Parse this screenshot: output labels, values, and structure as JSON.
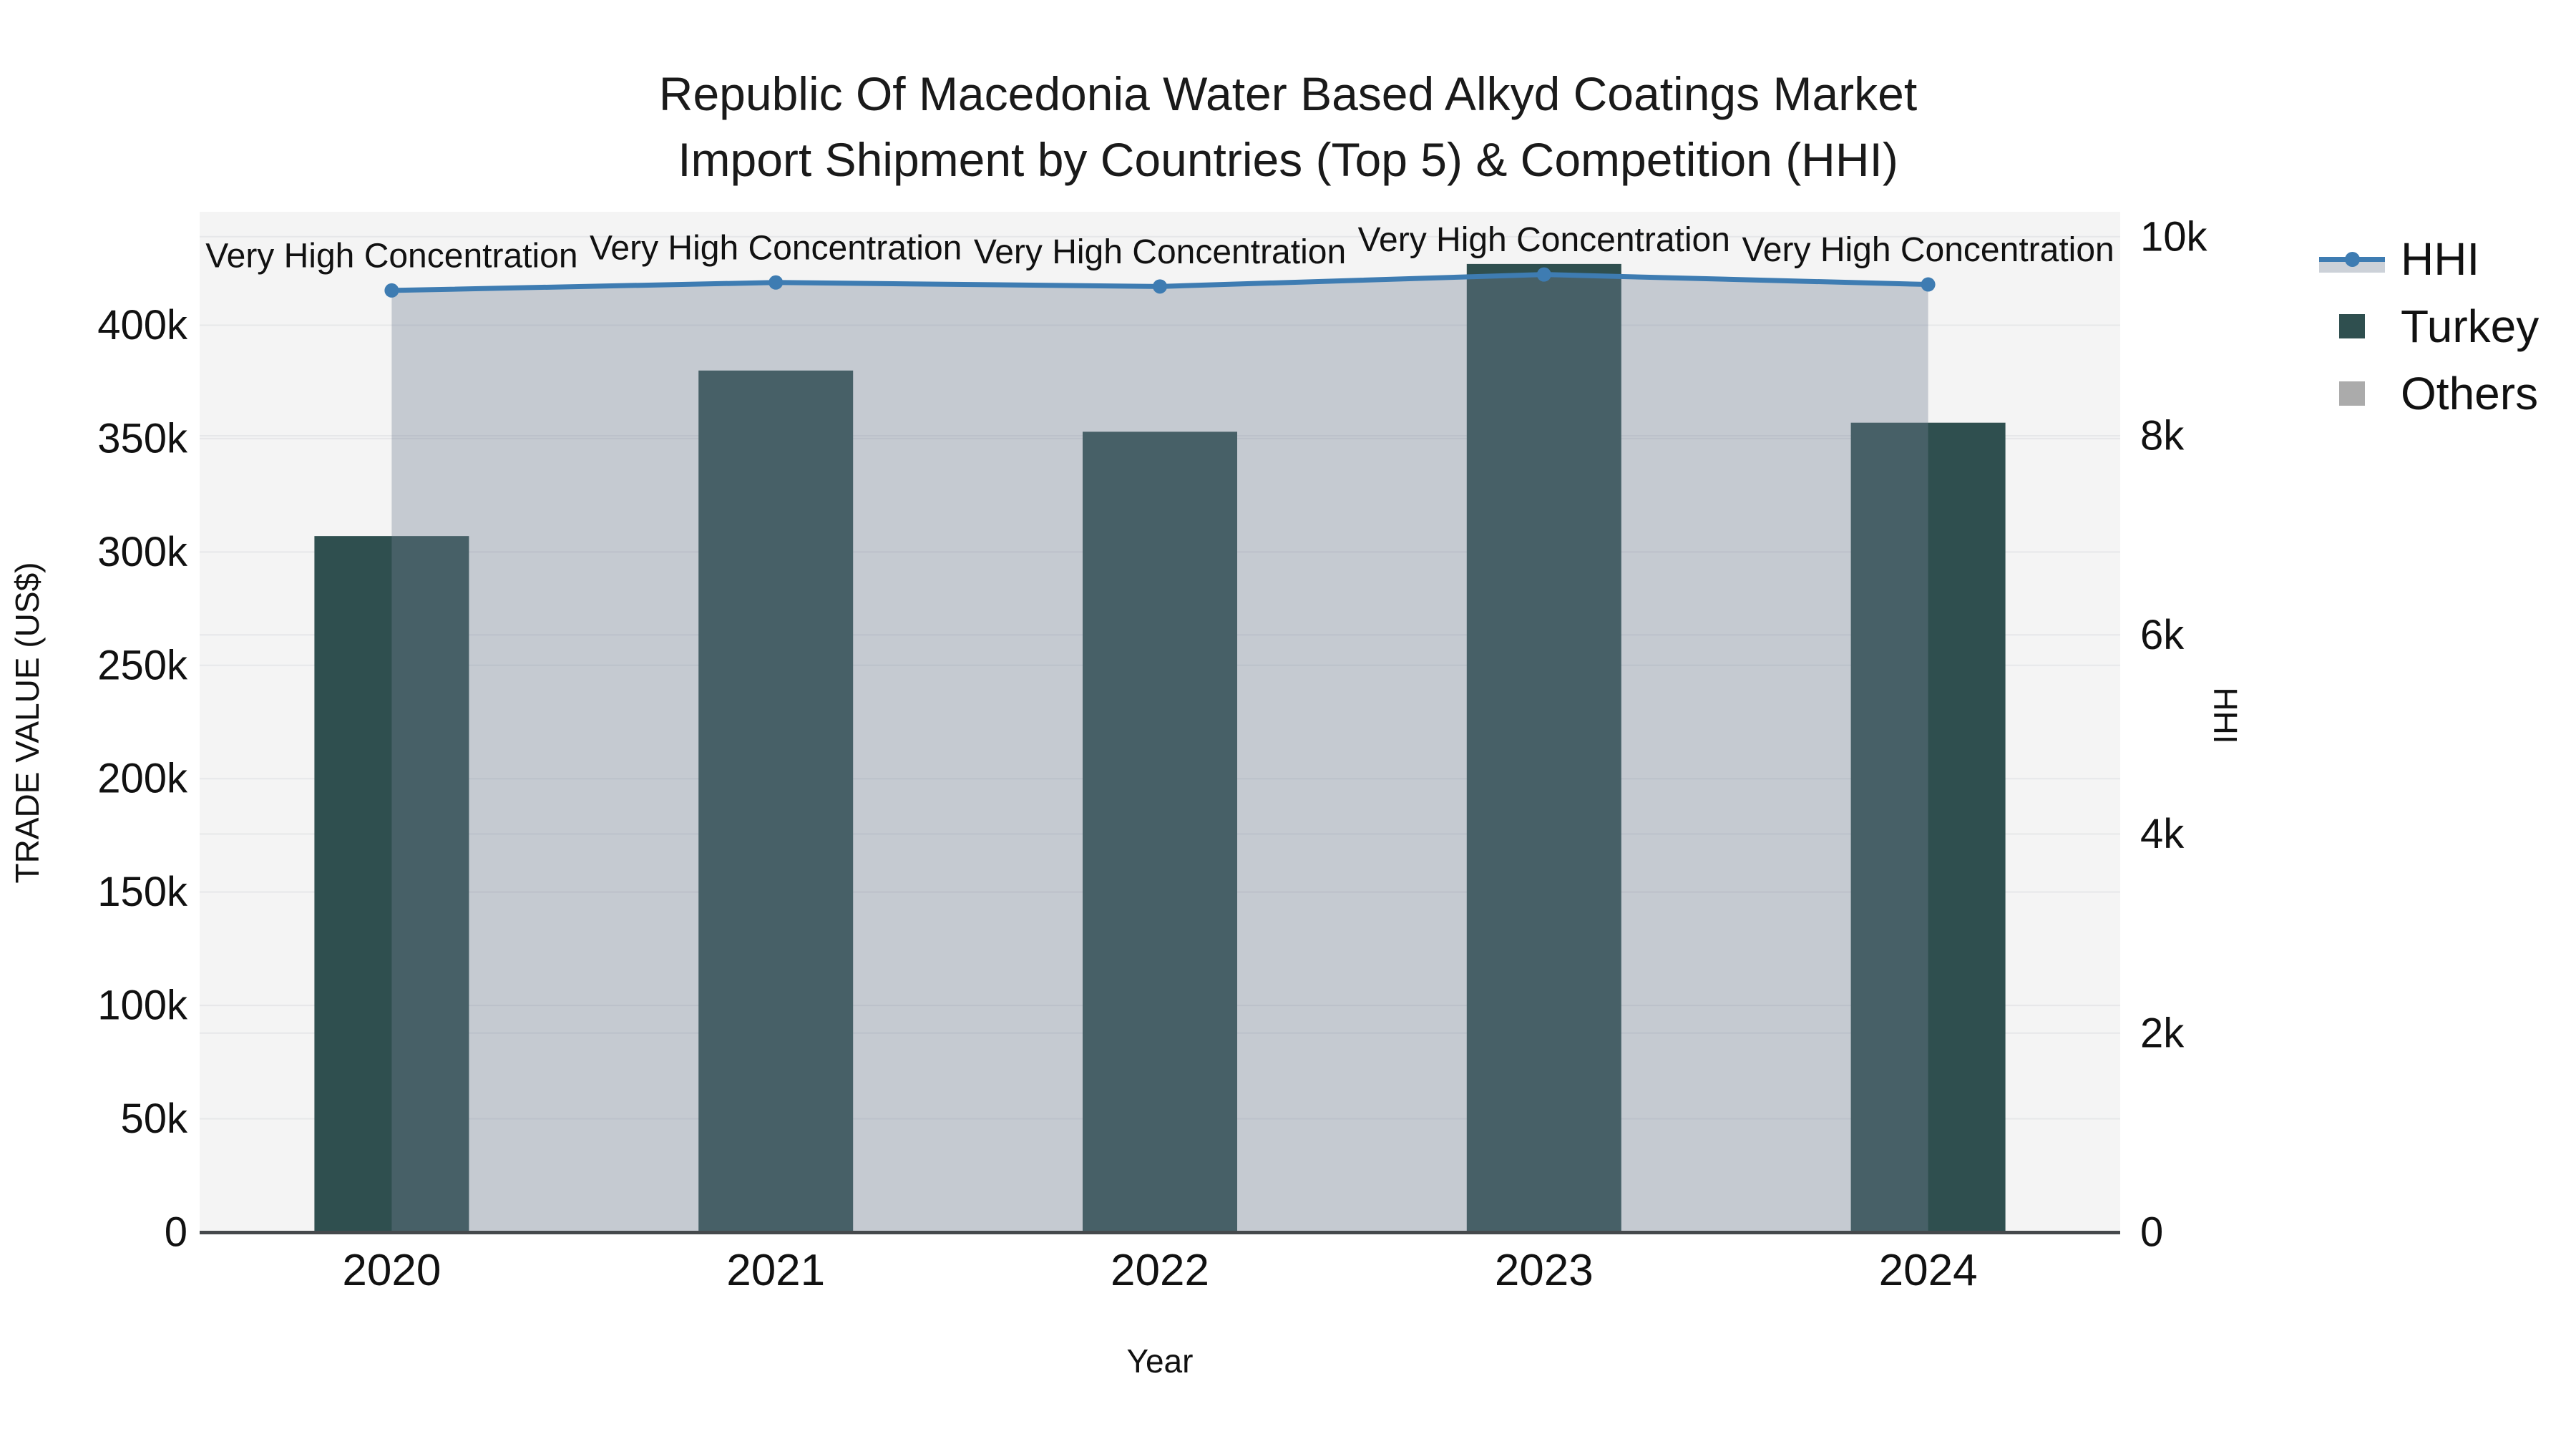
{
  "title": {
    "line1": "Republic Of Macedonia Water Based Alkyd Coatings Market",
    "line2": "Import Shipment by Countries (Top 5) & Competition (HHI)"
  },
  "chart_data": {
    "type": "bar+line dual-axis combo",
    "categories": [
      "2020",
      "2021",
      "2022",
      "2023",
      "2024"
    ],
    "series": [
      {
        "name": "Turkey",
        "type": "bar",
        "yaxis": "left",
        "color": "#2F4F4F",
        "values": [
          307000,
          380000,
          353000,
          427000,
          357000
        ]
      },
      {
        "name": "Others",
        "type": "bar",
        "yaxis": "left",
        "color": "#ABABAB",
        "values": [
          0,
          0,
          0,
          0,
          0
        ]
      },
      {
        "name": "HHI",
        "type": "line",
        "yaxis": "right",
        "color": "#3E7CB2",
        "marker": "circle",
        "area_fill": "rgba(113,128,147,0.36)",
        "values": [
          9460,
          9540,
          9500,
          9620,
          9520
        ]
      }
    ],
    "annotations": [
      {
        "x": "2020",
        "text": "Very High Concentration"
      },
      {
        "x": "2021",
        "text": "Very High Concentration"
      },
      {
        "x": "2022",
        "text": "Very High Concentration"
      },
      {
        "x": "2023",
        "text": "Very High Concentration"
      },
      {
        "x": "2024",
        "text": "Very High Concentration"
      }
    ],
    "xlabel": "Year",
    "y_left": {
      "title": "TRADE VALUE (US$)",
      "min": 0,
      "max": 450000,
      "ticks": [
        {
          "value": 0,
          "label": "0"
        },
        {
          "value": 50000,
          "label": "50k"
        },
        {
          "value": 100000,
          "label": "100k"
        },
        {
          "value": 150000,
          "label": "150k"
        },
        {
          "value": 200000,
          "label": "200k"
        },
        {
          "value": 250000,
          "label": "250k"
        },
        {
          "value": 300000,
          "label": "300k"
        },
        {
          "value": 350000,
          "label": "350k"
        },
        {
          "value": 400000,
          "label": "400k"
        }
      ]
    },
    "y_right": {
      "title": "HHI",
      "min": 0,
      "max": 10250,
      "ticks": [
        {
          "value": 0,
          "label": "0"
        },
        {
          "value": 2000,
          "label": "2k"
        },
        {
          "value": 4000,
          "label": "4k"
        },
        {
          "value": 6000,
          "label": "6k"
        },
        {
          "value": 8000,
          "label": "8k"
        },
        {
          "value": 10000,
          "label": "10k"
        }
      ]
    },
    "grid": true,
    "legend_position": "top-right outside plot"
  },
  "legend": {
    "items": [
      {
        "label": "HHI",
        "kind": "line"
      },
      {
        "label": "Turkey",
        "kind": "swatch",
        "color": "#2F4F4F"
      },
      {
        "label": "Others",
        "kind": "swatch",
        "color": "#ABABAB"
      }
    ]
  },
  "colors": {
    "page_bg": "#FFFFFF",
    "plot_bg": "#F4F4F4",
    "grid": "#E6E7E9",
    "axis_line": "#45494C",
    "text": "#111111",
    "turkey_bar": "#2F4F4F",
    "others": "#ABABAB",
    "hhi_line": "#3E7CB2",
    "hhi_fill": "rgba(113,128,147,0.36)"
  }
}
